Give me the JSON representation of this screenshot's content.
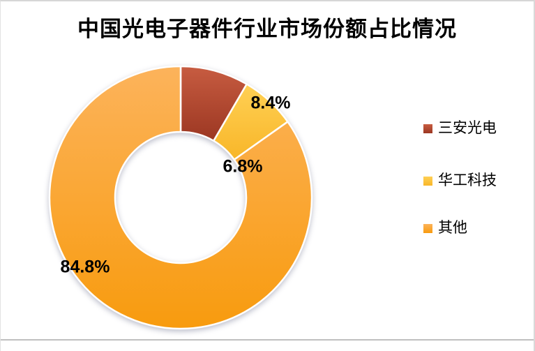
{
  "title": "中国光电子器件行业市场份额占比情况",
  "chart_data": {
    "type": "pie",
    "subtype": "donut",
    "title": "中国光电子器件行业市场份额占比情况",
    "categories": [
      "三安光电",
      "华工科技",
      "其他"
    ],
    "values": [
      8.4,
      6.8,
      84.8
    ],
    "data_labels": [
      "8.4%",
      "6.8%",
      "84.8%"
    ],
    "unit": "percent",
    "start_angle_deg": 0,
    "direction": "clockwise",
    "inner_radius_ratio": 0.5,
    "legend_position": "right",
    "colors": [
      {
        "from": "#C75C41",
        "to": "#9C3722"
      },
      {
        "from": "#FFD054",
        "to": "#F8B629"
      },
      {
        "from": "#FCB35B",
        "to": "#F89B0E"
      }
    ],
    "slice_border_color": "#FFFFFF"
  },
  "legend": {
    "items": [
      {
        "label": "三安光电"
      },
      {
        "label": "华工科技"
      },
      {
        "label": "其他"
      }
    ]
  }
}
